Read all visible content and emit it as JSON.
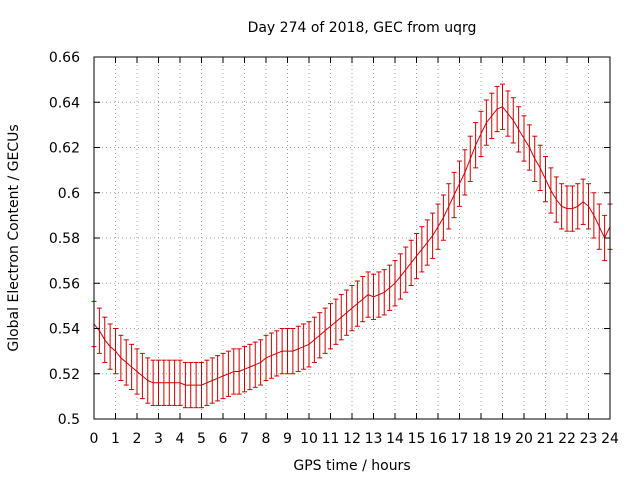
{
  "chart_data": {
    "type": "line",
    "title": "Day 274 of 2018, GEC from uqrg",
    "xlabel": "GPS time / hours",
    "ylabel": "Global Electron Content / GECUs",
    "xlim": [
      0,
      24
    ],
    "ylim": [
      0.5,
      0.66
    ],
    "x_ticks": [
      "0",
      "1",
      "2",
      "3",
      "4",
      "5",
      "6",
      "7",
      "8",
      "9",
      "10",
      "11",
      "12",
      "13",
      "14",
      "15",
      "16",
      "17",
      "18",
      "19",
      "20",
      "21",
      "22",
      "23",
      "24"
    ],
    "y_ticks": [
      "0.5",
      "0.52",
      "0.54",
      "0.56",
      "0.58",
      "0.6",
      "0.62",
      "0.64",
      "0.66"
    ],
    "grid": true,
    "error_bar": 0.01,
    "colors": {
      "series": "#cc0000",
      "grid": "#a0a0a0",
      "axis": "#000000"
    },
    "series": [
      {
        "x": [
          0,
          0.25,
          0.5,
          0.75,
          1,
          1.25,
          1.5,
          1.75,
          2,
          2.25,
          2.5,
          2.75,
          3,
          3.25,
          3.5,
          3.75,
          4,
          4.25,
          4.5,
          4.75,
          5,
          5.25,
          5.5,
          5.75,
          6,
          6.25,
          6.5,
          6.75,
          7,
          7.25,
          7.5,
          7.75,
          8,
          8.25,
          8.5,
          8.75,
          9,
          9.25,
          9.5,
          9.75,
          10,
          10.25,
          10.5,
          10.75,
          11,
          11.25,
          11.5,
          11.75,
          12,
          12.25,
          12.5,
          12.75,
          13,
          13.25,
          13.5,
          13.75,
          14,
          14.25,
          14.5,
          14.75,
          15,
          15.25,
          15.5,
          15.75,
          16,
          16.25,
          16.5,
          16.75,
          17,
          17.25,
          17.5,
          17.75,
          18,
          18.25,
          18.5,
          18.75,
          19,
          19.25,
          19.5,
          19.75,
          20,
          20.25,
          20.5,
          20.75,
          21,
          21.25,
          21.5,
          21.75,
          22,
          22.25,
          22.5,
          22.75,
          23,
          23.25,
          23.5,
          23.75,
          24
        ],
        "y": [
          0.542,
          0.539,
          0.535,
          0.532,
          0.53,
          0.527,
          0.525,
          0.523,
          0.521,
          0.519,
          0.517,
          0.516,
          0.516,
          0.516,
          0.516,
          0.516,
          0.516,
          0.515,
          0.515,
          0.515,
          0.515,
          0.516,
          0.517,
          0.518,
          0.519,
          0.52,
          0.521,
          0.521,
          0.522,
          0.523,
          0.524,
          0.525,
          0.527,
          0.528,
          0.529,
          0.53,
          0.53,
          0.53,
          0.531,
          0.532,
          0.533,
          0.535,
          0.537,
          0.539,
          0.541,
          0.543,
          0.545,
          0.547,
          0.549,
          0.551,
          0.553,
          0.555,
          0.554,
          0.555,
          0.556,
          0.558,
          0.56,
          0.563,
          0.566,
          0.569,
          0.572,
          0.575,
          0.578,
          0.581,
          0.585,
          0.589,
          0.594,
          0.599,
          0.604,
          0.609,
          0.615,
          0.621,
          0.626,
          0.631,
          0.634,
          0.637,
          0.638,
          0.635,
          0.632,
          0.628,
          0.624,
          0.62,
          0.615,
          0.611,
          0.606,
          0.601,
          0.597,
          0.594,
          0.593,
          0.593,
          0.594,
          0.596,
          0.594,
          0.59,
          0.585,
          0.58,
          0.585
        ]
      }
    ]
  }
}
